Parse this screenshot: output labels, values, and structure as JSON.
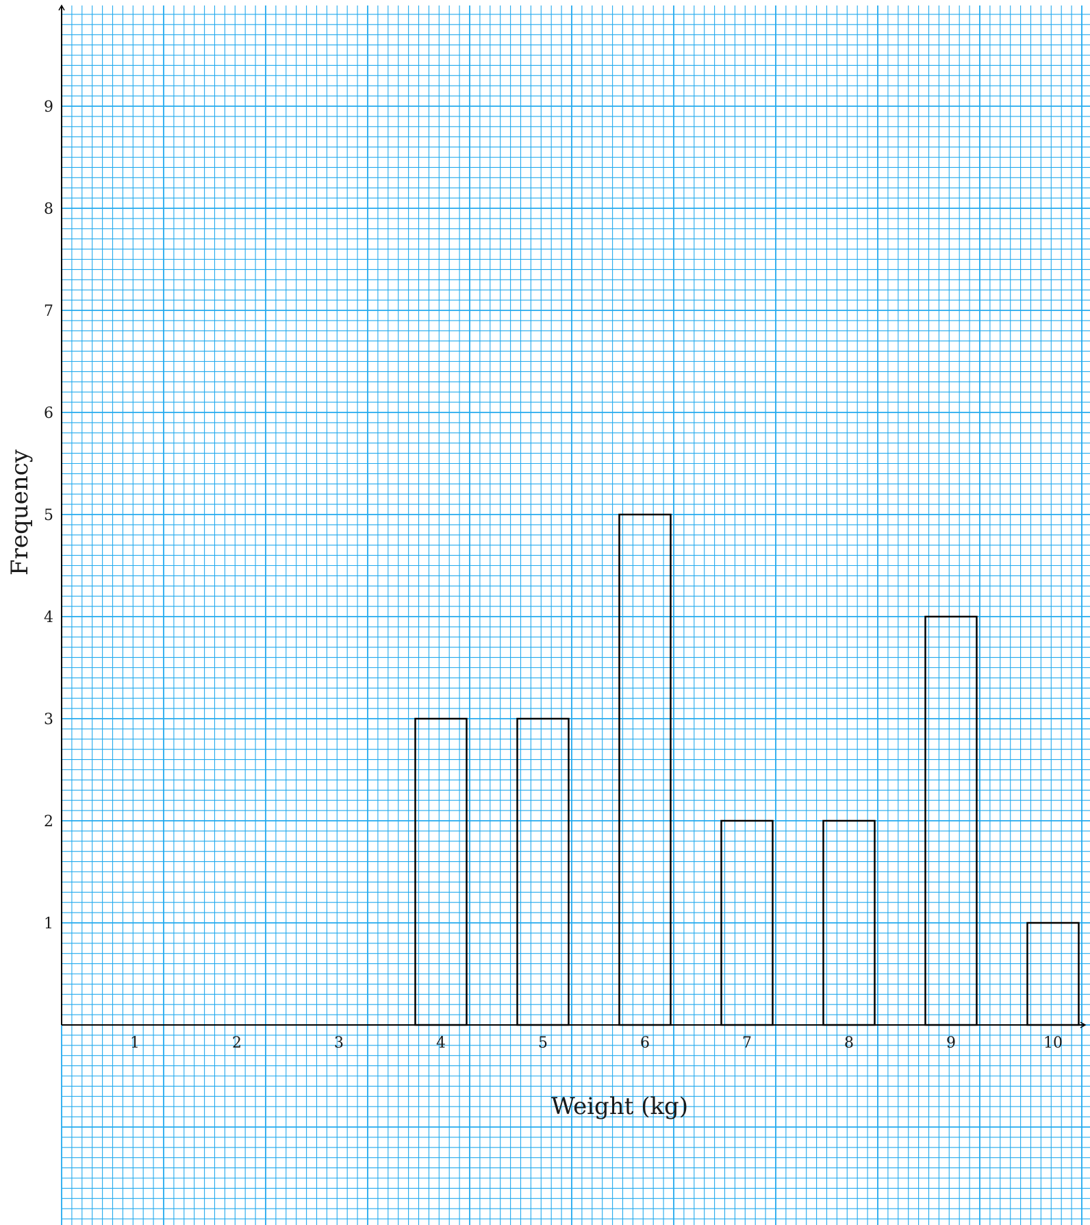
{
  "chart_data": {
    "type": "bar",
    "title": "",
    "xlabel": "Weight (kg)",
    "ylabel": "Frequency",
    "categories": [
      "1",
      "2",
      "3",
      "4",
      "5",
      "6",
      "7",
      "8",
      "9",
      "10"
    ],
    "values": [
      0,
      0,
      0,
      3,
      3,
      5,
      2,
      2,
      4,
      1
    ],
    "y_ticks": [
      "1",
      "2",
      "3",
      "4",
      "5",
      "6",
      "7",
      "8",
      "9"
    ],
    "ylim": [
      0,
      10
    ],
    "xlim": [
      0,
      10.3
    ],
    "grid": true,
    "grid_style": "graph paper",
    "legend": "none",
    "colors": {
      "grid": "#22aaee",
      "bars": "#000000",
      "background": "#ffffff"
    }
  }
}
